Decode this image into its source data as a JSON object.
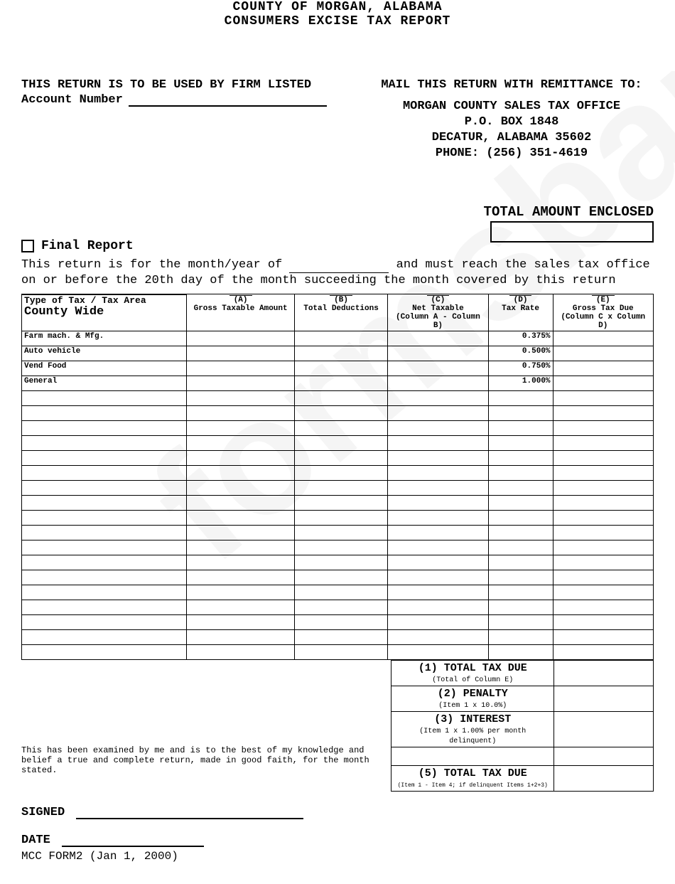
{
  "header": {
    "line1": "COUNTY OF MORGAN, ALABAMA",
    "line2": "CONSUMERS EXCISE TAX REPORT"
  },
  "firm_notice": "THIS RETURN IS TO BE USED BY FIRM LISTED",
  "account_label": "Account Number",
  "mail_to_label": "MAIL THIS RETURN WITH REMITTANCE TO:",
  "address": {
    "l1": "MORGAN COUNTY SALES TAX OFFICE",
    "l2": "P.O. BOX 1848",
    "l3": "DECATUR, ALABAMA 35602",
    "l4": "PHONE: (256) 351-4619"
  },
  "total_enclosed": "TOTAL AMOUNT ENCLOSED",
  "final_report": "Final Report",
  "return_note_1": "This return is for the month/year of",
  "return_note_2": "and must reach the sales tax office on or before the 20th day of the month succeeding the month covered by this return",
  "columns": {
    "type_header": "Type of Tax / Tax Area",
    "county_wide": "County Wide",
    "a_code": "(A)",
    "a_label": "Gross Taxable Amount",
    "b_code": "(B)",
    "b_label": "Total Deductions",
    "c_code": "(C)",
    "c_label": "Net Taxable",
    "c_formula": "(Column A - Column B)",
    "d_code": "(D)",
    "d_label": "Tax Rate",
    "e_code": "(E)",
    "e_label": "Gross Tax Due",
    "e_formula": "(Column C x Column D)"
  },
  "rows": [
    {
      "type": "Farm mach. & Mfg.",
      "rate": "0.375%"
    },
    {
      "type": "Auto vehicle",
      "rate": "0.500%"
    },
    {
      "type": "Vend Food",
      "rate": "0.750%"
    },
    {
      "type": "General",
      "rate": "1.000%"
    }
  ],
  "blank_row_count": 18,
  "summary": {
    "s1_big": "(1) TOTAL TAX DUE",
    "s1_sm": "(Total of Column E)",
    "s2_big": "(2) PENALTY",
    "s2_sm": "(Item 1 x 10.0%)",
    "s3_big": "(3) INTEREST",
    "s3_sm": "(Item 1 x 1.00% per month delinquent)",
    "s4_big": "",
    "s4_sm": "",
    "s5_big": "(5) TOTAL TAX DUE",
    "s5_sm": "(Item 1 - Item 4; if delinquent Items 1+2+3)"
  },
  "attestation": "This has been examined by me and is to the best of my knowledge and belief a true and complete return, made in good faith, for the month stated.",
  "signed_label": "SIGNED",
  "date_label": "DATE",
  "form_id": "MCC FORM2 (Jan 1, 2000)"
}
